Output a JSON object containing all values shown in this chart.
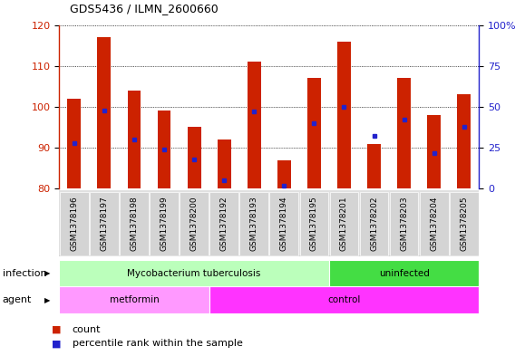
{
  "title": "GDS5436 / ILMN_2600660",
  "samples": [
    "GSM1378196",
    "GSM1378197",
    "GSM1378198",
    "GSM1378199",
    "GSM1378200",
    "GSM1378192",
    "GSM1378193",
    "GSM1378194",
    "GSM1378195",
    "GSM1378201",
    "GSM1378202",
    "GSM1378203",
    "GSM1378204",
    "GSM1378205"
  ],
  "counts": [
    102,
    117,
    104,
    99,
    95,
    92,
    111,
    87,
    107,
    116,
    91,
    107,
    98,
    103
  ],
  "percentile_ranks": [
    28,
    48,
    30,
    24,
    18,
    5,
    47,
    2,
    40,
    50,
    32,
    42,
    22,
    38
  ],
  "bar_color": "#cc2200",
  "dot_color": "#2222cc",
  "ylim_left": [
    80,
    120
  ],
  "ylim_right": [
    0,
    100
  ],
  "yticks_left": [
    80,
    90,
    100,
    110,
    120
  ],
  "yticks_right": [
    0,
    25,
    50,
    75,
    100
  ],
  "infection_groups": [
    {
      "label": "Mycobacterium tuberculosis",
      "start": 0,
      "end": 9,
      "color": "#bbffbb"
    },
    {
      "label": "uninfected",
      "start": 9,
      "end": 14,
      "color": "#44dd44"
    }
  ],
  "agent_groups": [
    {
      "label": "metformin",
      "start": 0,
      "end": 5,
      "color": "#ff99ff"
    },
    {
      "label": "control",
      "start": 5,
      "end": 14,
      "color": "#ff33ff"
    }
  ],
  "infection_label": "infection",
  "agent_label": "agent",
  "bar_width": 0.45,
  "legend_count_label": "count",
  "legend_pct_label": "percentile rank within the sample"
}
